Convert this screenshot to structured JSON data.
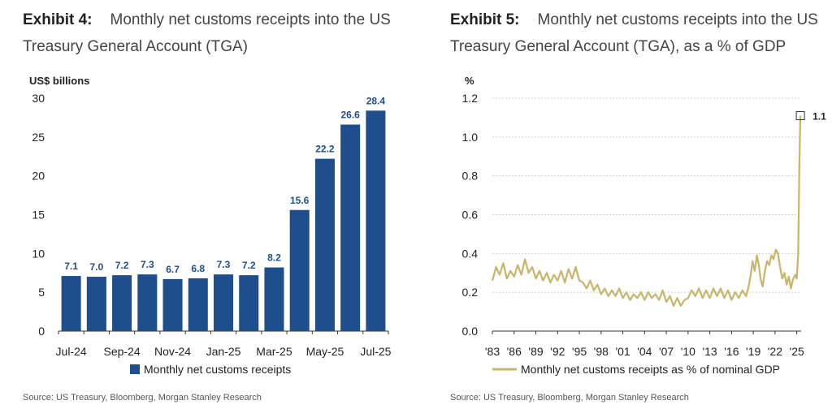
{
  "exhibit4": {
    "number": "Exhibit 4:",
    "title": "Monthly net customs receipts into the US Treasury General Account (TGA)",
    "source": "Source: US Treasury, Bloomberg, Morgan Stanley Research"
  },
  "exhibit5": {
    "number": "Exhibit 5:",
    "title": "Monthly net customs receipts into the US Treasury General Account (TGA), as a % of GDP",
    "source": "Source: US Treasury, Bloomberg, Morgan Stanley Research"
  },
  "chart_data": [
    {
      "type": "bar",
      "ylabel": "US$ billions",
      "ylim": [
        0,
        30
      ],
      "yticks": [
        0,
        5,
        10,
        15,
        20,
        25,
        30
      ],
      "categories": [
        "Jul-24",
        "Aug-24",
        "Sep-24",
        "Oct-24",
        "Nov-24",
        "Dec-24",
        "Jan-25",
        "Feb-25",
        "Mar-25",
        "Apr-25",
        "May-25",
        "Jun-25",
        "Jul-25"
      ],
      "xtick_labels": [
        "Jul-24",
        "Sep-24",
        "Nov-24",
        "Jan-25",
        "Mar-25",
        "May-25",
        "Jul-25"
      ],
      "series": [
        {
          "name": "Monthly net customs receipts",
          "values": [
            7.1,
            7.0,
            7.2,
            7.3,
            6.7,
            6.8,
            7.3,
            7.2,
            8.2,
            15.6,
            22.2,
            26.6,
            28.4
          ],
          "labels": [
            "7.1",
            "7.0",
            "7.2",
            "7.3",
            "6.7",
            "6.8",
            "7.3",
            "7.2",
            "8.2",
            "15.6",
            "22.2",
            "26.6",
            "28.4"
          ],
          "color": "#1f4e8c"
        }
      ],
      "legend": "bottom",
      "grid": false
    },
    {
      "type": "line",
      "ylabel": "%",
      "ylim": [
        0.0,
        1.2
      ],
      "yticks": [
        "0.0",
        "0.2",
        "0.4",
        "0.6",
        "0.8",
        "1.0",
        "1.2"
      ],
      "xlim": [
        1983,
        2025.6
      ],
      "xticks": [
        1983,
        1986,
        1989,
        1992,
        1995,
        1998,
        2001,
        2004,
        2007,
        2010,
        2013,
        2016,
        2019,
        2022,
        2025
      ],
      "xtick_labels": [
        "'83",
        "'86",
        "'89",
        "'92",
        "'95",
        "'98",
        "'01",
        "'04",
        "'07",
        "'10",
        "'13",
        "'16",
        "'19",
        "'22",
        "'25"
      ],
      "grid": true,
      "legend": "bottom",
      "series": [
        {
          "name": "Monthly net customs receipts as % of nominal GDP",
          "color": "#c9b46a",
          "x": [
            1983.0,
            1983.5,
            1984.0,
            1984.5,
            1985.0,
            1985.5,
            1986.0,
            1986.5,
            1987.0,
            1987.5,
            1988.0,
            1988.5,
            1989.0,
            1989.5,
            1990.0,
            1990.5,
            1991.0,
            1991.5,
            1992.0,
            1992.5,
            1993.0,
            1993.5,
            1994.0,
            1994.5,
            1995.0,
            1995.5,
            1996.0,
            1996.5,
            1997.0,
            1997.5,
            1998.0,
            1998.5,
            1999.0,
            1999.5,
            2000.0,
            2000.5,
            2001.0,
            2001.5,
            2002.0,
            2002.5,
            2003.0,
            2003.5,
            2004.0,
            2004.5,
            2005.0,
            2005.5,
            2006.0,
            2006.5,
            2007.0,
            2007.5,
            2008.0,
            2008.5,
            2009.0,
            2009.5,
            2010.0,
            2010.5,
            2011.0,
            2011.5,
            2012.0,
            2012.5,
            2013.0,
            2013.5,
            2014.0,
            2014.5,
            2015.0,
            2015.5,
            2016.0,
            2016.5,
            2017.0,
            2017.5,
            2018.0,
            2018.3,
            2018.6,
            2018.9,
            2019.2,
            2019.5,
            2019.8,
            2020.0,
            2020.3,
            2020.6,
            2020.9,
            2021.2,
            2021.5,
            2021.8,
            2022.1,
            2022.4,
            2022.7,
            2023.0,
            2023.3,
            2023.6,
            2023.9,
            2024.2,
            2024.5,
            2024.8,
            2025.0,
            2025.2,
            2025.35,
            2025.5
          ],
          "y": [
            0.26,
            0.33,
            0.29,
            0.35,
            0.27,
            0.31,
            0.28,
            0.34,
            0.29,
            0.37,
            0.3,
            0.33,
            0.27,
            0.31,
            0.26,
            0.3,
            0.25,
            0.29,
            0.26,
            0.31,
            0.25,
            0.32,
            0.27,
            0.33,
            0.26,
            0.25,
            0.22,
            0.26,
            0.21,
            0.24,
            0.19,
            0.22,
            0.18,
            0.21,
            0.18,
            0.22,
            0.17,
            0.2,
            0.16,
            0.19,
            0.17,
            0.2,
            0.16,
            0.2,
            0.17,
            0.19,
            0.16,
            0.21,
            0.15,
            0.18,
            0.13,
            0.17,
            0.13,
            0.16,
            0.17,
            0.21,
            0.18,
            0.22,
            0.17,
            0.21,
            0.17,
            0.22,
            0.18,
            0.22,
            0.17,
            0.21,
            0.16,
            0.2,
            0.17,
            0.21,
            0.18,
            0.22,
            0.28,
            0.36,
            0.31,
            0.39,
            0.33,
            0.27,
            0.23,
            0.31,
            0.36,
            0.34,
            0.39,
            0.37,
            0.42,
            0.4,
            0.33,
            0.27,
            0.3,
            0.24,
            0.28,
            0.22,
            0.27,
            0.29,
            0.27,
            0.4,
            0.85,
            1.11
          ]
        }
      ],
      "end_label": "1.1"
    }
  ]
}
